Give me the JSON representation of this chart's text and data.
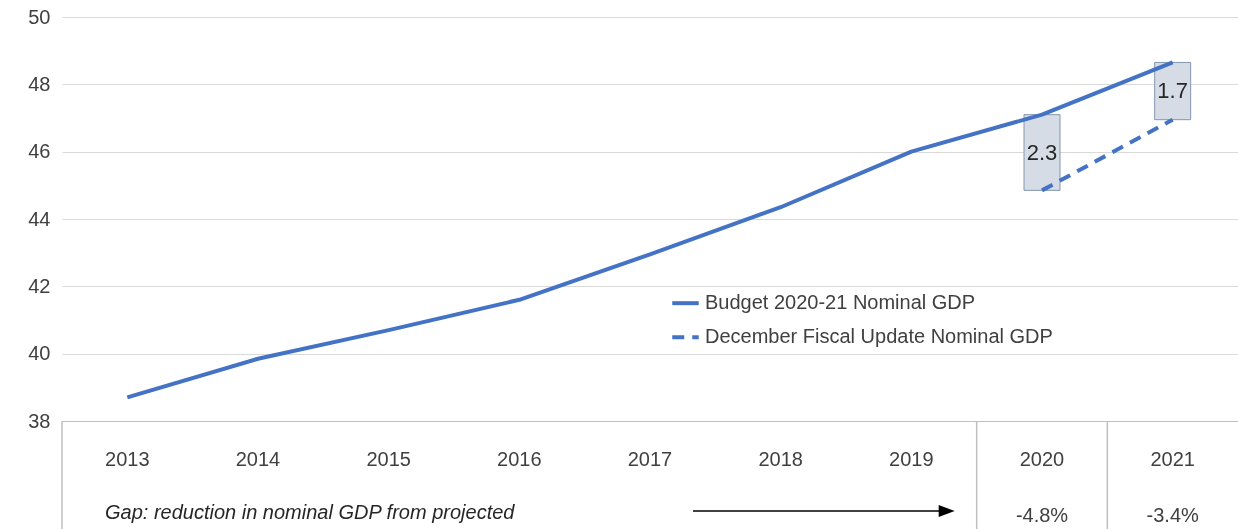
{
  "chart_data": {
    "type": "line",
    "categories": [
      "2013",
      "2014",
      "2015",
      "2016",
      "2017",
      "2018",
      "2019",
      "2020",
      "2021"
    ],
    "series": [
      {
        "name": "Budget 2020-21 Nominal GDP",
        "color": "#4472c4",
        "line_style": "solid",
        "values": [
          38.7,
          39.85,
          40.7,
          41.6,
          42.95,
          44.35,
          46.0,
          47.1,
          48.65
        ]
      },
      {
        "name": "December Fiscal Update Nominal GDP",
        "color": "#4472c4",
        "line_style": "dashed",
        "values": [
          null,
          null,
          null,
          null,
          null,
          null,
          null,
          44.85,
          46.95
        ]
      }
    ],
    "ylim": [
      38,
      50
    ],
    "yticks": [
      38,
      40,
      42,
      44,
      46,
      48,
      50
    ],
    "grid": "y",
    "legend": "bottom right",
    "marker": "none",
    "annotations": [
      "2.3",
      "1.7",
      "Gap: reduction in nominal GDP from projected",
      "-4.8%",
      "-3.4%"
    ]
  }
}
